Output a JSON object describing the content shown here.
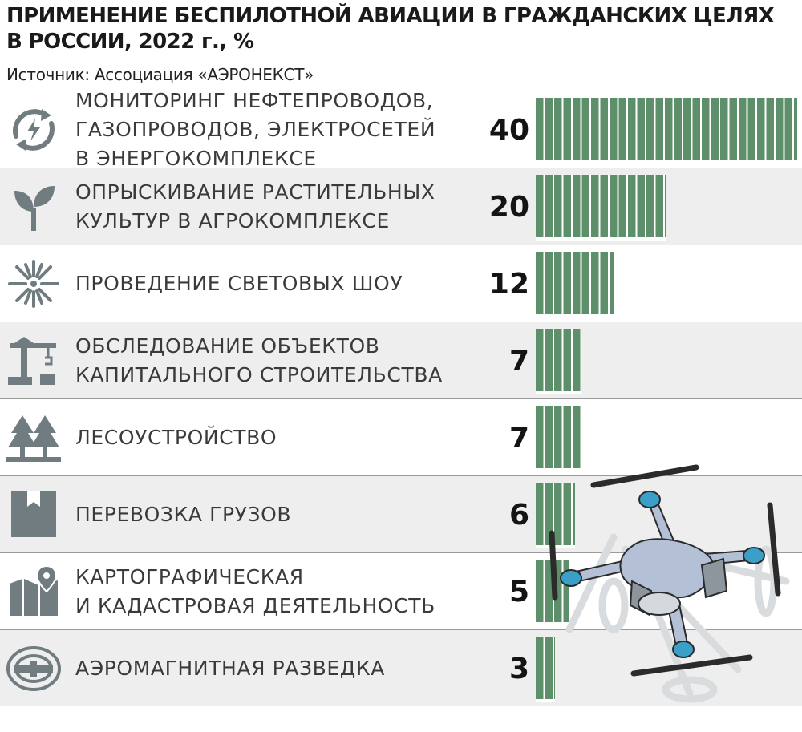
{
  "title": "ПРИМЕНЕНИЕ БЕСПИЛОТНОЙ АВИАЦИИ В ГРАЖДАНСКИХ ЦЕЛЯХ\nВ РОССИИ, 2022 г., %",
  "source": "Источник: Ассоциация «АЭРОНЕКСТ»",
  "colors": {
    "bar": "#5e8f6b",
    "icon": "#707c80",
    "shade": "#eeeeee"
  },
  "chart_data": {
    "type": "bar",
    "orientation": "horizontal",
    "title": "ПРИМЕНЕНИЕ БЕСПИЛОТНОЙ АВИАЦИИ В ГРАЖДАНСКИХ ЦЕЛЯХ В РОССИИ, 2022 г., %",
    "categories": [
      "МОНИТОРИНГ НЕФТЕПРОВОДОВ,\nГАЗОПРОВОДОВ, ЭЛЕКТРОСЕТЕЙ\nВ ЭНЕРГОКОМПЛЕКСЕ",
      "ОПРЫСКИВАНИЕ РАСТИТЕЛЬНЫХ\nКУЛЬТУР В АГРОКОМПЛЕКСЕ",
      "ПРОВЕДЕНИЕ СВЕТОВЫХ ШОУ",
      "ОБСЛЕДОВАНИЕ ОБЪЕКТОВ\nКАПИТАЛЬНОГО СТРОИТЕЛЬСТВА",
      "ЛЕСОУСТРОЙСТВО",
      "ПЕРЕВОЗКА ГРУЗОВ",
      "КАРТОГРАФИЧЕСКАЯ\nИ КАДАСТРОВАЯ ДЕЯТЕЛЬНОСТЬ",
      "АЭРОМАГНИТНАЯ РАЗВЕДКА"
    ],
    "values": [
      40,
      20,
      12,
      7,
      7,
      6,
      5,
      3
    ],
    "icons": [
      "energy-cycle-icon",
      "sprout-icon",
      "firework-icon",
      "crane-icon",
      "forest-icon",
      "box-icon",
      "map-pin-icon",
      "magnet-field-icon"
    ],
    "xlim": [
      0,
      40
    ],
    "grid": false,
    "legend": "none"
  }
}
